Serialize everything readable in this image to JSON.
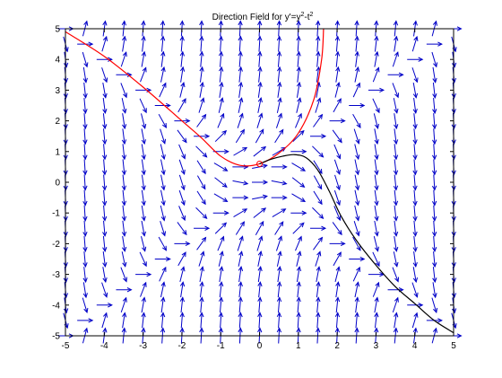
{
  "chart_data": {
    "type": "quiver",
    "title": {
      "prefix": "Direction Field for y'=y",
      "exp1": "2",
      "mid": "-t",
      "exp2": "2"
    },
    "xlabel": "",
    "ylabel": "",
    "xlim": [
      -5,
      5
    ],
    "ylim": [
      -5,
      5
    ],
    "x_ticks": [
      -5,
      -4,
      -3,
      -2,
      -1,
      0,
      1,
      2,
      3,
      4,
      5
    ],
    "y_ticks": [
      -5,
      -4,
      -3,
      -2,
      -1,
      0,
      1,
      2,
      3,
      4,
      5
    ],
    "grid": false,
    "legend": "none",
    "field": {
      "equation": "dy/dt = y^2 - t^2",
      "t_range": [
        -5,
        5
      ],
      "y_range": [
        -5,
        5
      ],
      "step": 0.5,
      "color": "#0000c8"
    },
    "series": [
      {
        "color": "#ff0000",
        "points": [
          [
            -5,
            4.9
          ],
          [
            -4,
            4.1
          ],
          [
            -3,
            3.1
          ],
          [
            -2,
            2.0
          ],
          [
            -1.5,
            1.45
          ],
          [
            -1,
            0.85
          ],
          [
            -0.5,
            0.55
          ],
          [
            0,
            0.6
          ],
          [
            0.5,
            0.95
          ],
          [
            1,
            1.6
          ],
          [
            1.4,
            2.7
          ],
          [
            1.6,
            4.0
          ],
          [
            1.65,
            5.0
          ]
        ]
      },
      {
        "color": "#000000",
        "points": [
          [
            0,
            0.6
          ],
          [
            0.3,
            0.75
          ],
          [
            0.6,
            0.85
          ],
          [
            0.9,
            0.9
          ],
          [
            1.2,
            0.8
          ],
          [
            1.5,
            0.4
          ],
          [
            1.8,
            -0.3
          ],
          [
            2.1,
            -1.1
          ],
          [
            2.5,
            -1.9
          ],
          [
            3,
            -2.7
          ],
          [
            3.5,
            -3.4
          ],
          [
            4,
            -3.95
          ],
          [
            4.5,
            -4.5
          ],
          [
            5,
            -4.9
          ]
        ]
      }
    ],
    "marker": {
      "t": 0,
      "y": 0.6,
      "color": "#ff0000"
    }
  }
}
